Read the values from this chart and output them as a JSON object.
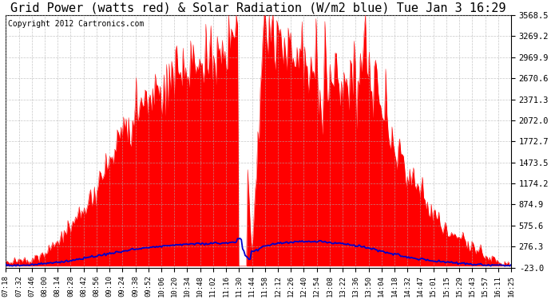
{
  "title": "Grid Power (watts red) & Solar Radiation (W/m2 blue) Tue Jan 3 16:29",
  "copyright": "Copyright 2012 Cartronics.com",
  "yticks": [
    3568.5,
    3269.2,
    2969.9,
    2670.6,
    2371.3,
    2072.0,
    1772.7,
    1473.5,
    1174.2,
    874.9,
    575.6,
    276.3,
    -23.0
  ],
  "ymin": -23.0,
  "ymax": 3568.5,
  "bg_color": "#ffffff",
  "plot_bg_color": "#ffffff",
  "grid_color": "#b0b0b0",
  "red_color": "#ff0000",
  "blue_color": "#0000cc",
  "title_fontsize": 11,
  "copyright_fontsize": 7,
  "tick_fontsize": 7.5,
  "xtick_fontsize": 6.5,
  "time_labels": [
    "07:18",
    "07:32",
    "07:46",
    "08:00",
    "08:14",
    "08:28",
    "08:42",
    "08:56",
    "09:10",
    "09:24",
    "09:38",
    "09:52",
    "10:06",
    "10:20",
    "10:34",
    "10:48",
    "11:02",
    "11:16",
    "11:30",
    "11:44",
    "11:58",
    "12:12",
    "12:26",
    "12:40",
    "12:54",
    "13:08",
    "13:22",
    "13:36",
    "13:50",
    "14:04",
    "14:18",
    "14:32",
    "14:47",
    "15:01",
    "15:15",
    "15:29",
    "15:43",
    "15:57",
    "16:11",
    "16:25"
  ]
}
